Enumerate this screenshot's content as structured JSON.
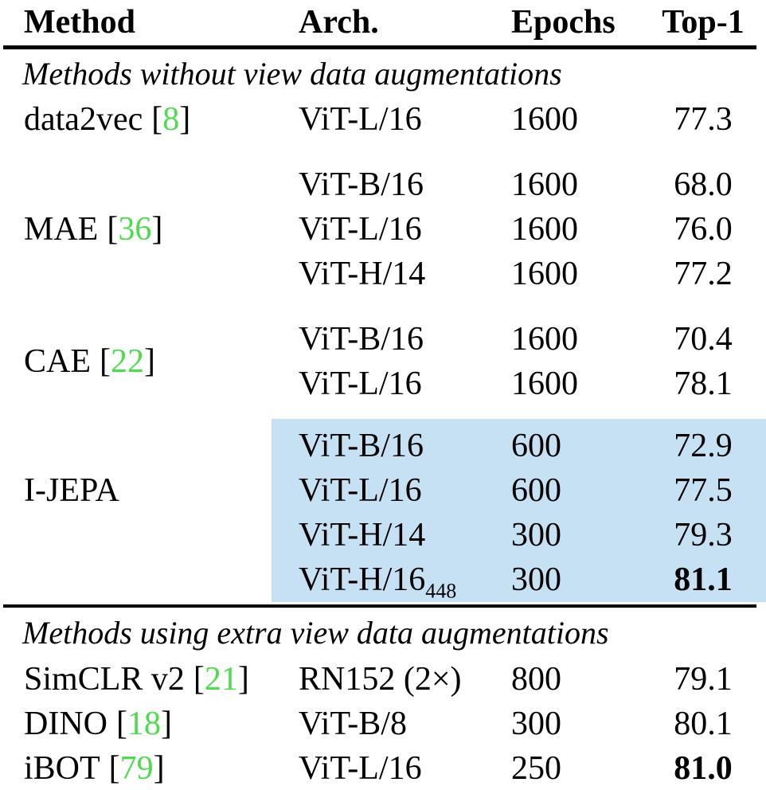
{
  "table": {
    "columns": [
      "Method",
      "Arch.",
      "Epochs",
      "Top-1"
    ],
    "citation": {
      "open": "[",
      "close": "]"
    },
    "colors": {
      "citation_green": "#4FDB4F",
      "highlight_blue": "#C7E1F4",
      "text": "#000000"
    },
    "sections": [
      {
        "label": "Methods without view data augmentations",
        "groups": [
          {
            "method": "data2vec",
            "cite": "8",
            "rows": [
              {
                "arch": "ViT-L/16",
                "epochs": "1600",
                "top1": "77.3"
              }
            ]
          },
          {
            "method": "MAE",
            "cite": "36",
            "rows": [
              {
                "arch": "ViT-B/16",
                "epochs": "1600",
                "top1": "68.0"
              },
              {
                "arch": "ViT-L/16",
                "epochs": "1600",
                "top1": "76.0"
              },
              {
                "arch": "ViT-H/14",
                "epochs": "1600",
                "top1": "77.2"
              }
            ]
          },
          {
            "method": "CAE",
            "cite": "22",
            "rows": [
              {
                "arch": "ViT-B/16",
                "epochs": "1600",
                "top1": "70.4"
              },
              {
                "arch": "ViT-L/16",
                "epochs": "1600",
                "top1": "78.1"
              }
            ]
          },
          {
            "method": "I-JEPA",
            "highlighted": true,
            "rows": [
              {
                "arch": "ViT-B/16",
                "epochs": "600",
                "top1": "72.9"
              },
              {
                "arch": "ViT-L/16",
                "epochs": "600",
                "top1": "77.5"
              },
              {
                "arch": "ViT-H/14",
                "epochs": "300",
                "top1": "79.3"
              },
              {
                "arch": "ViT-H/16",
                "arch_sub": "448",
                "epochs": "300",
                "top1": "81.1",
                "top1_bold": true
              }
            ]
          }
        ]
      },
      {
        "label": "Methods using extra view data augmentations",
        "groups": [
          {
            "method": "SimCLR v2",
            "cite": "21",
            "rows": [
              {
                "arch": "RN152 (2×)",
                "epochs": "800",
                "top1": "79.1"
              }
            ]
          },
          {
            "method": "DINO",
            "cite": "18",
            "rows": [
              {
                "arch": "ViT-B/8",
                "epochs": "300",
                "top1": "80.1"
              }
            ]
          },
          {
            "method": "iBOT",
            "cite": "79",
            "rows": [
              {
                "arch": "ViT-L/16",
                "epochs": "250",
                "top1": "81.0",
                "top1_bold": true
              }
            ]
          }
        ]
      }
    ]
  }
}
